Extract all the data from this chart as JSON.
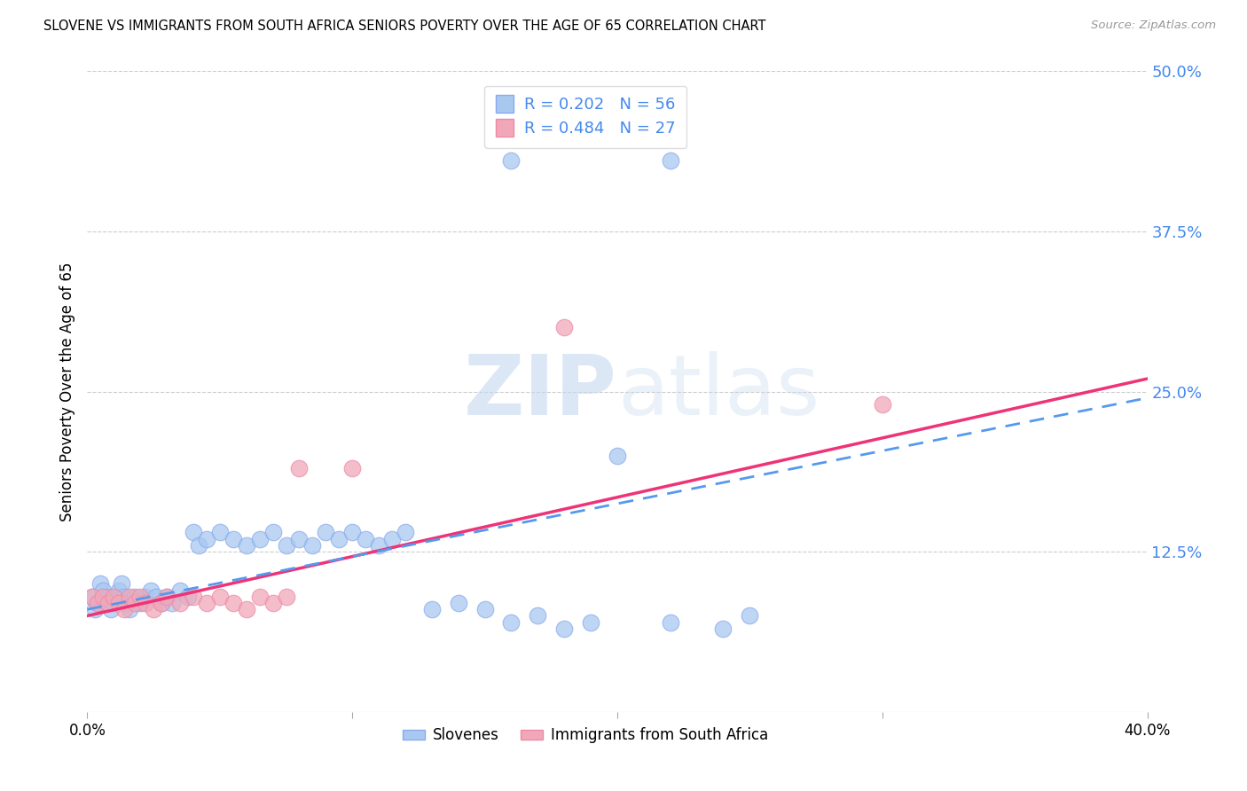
{
  "title": "SLOVENE VS IMMIGRANTS FROM SOUTH AFRICA SENIORS POVERTY OVER THE AGE OF 65 CORRELATION CHART",
  "source": "Source: ZipAtlas.com",
  "ylabel": "Seniors Poverty Over the Age of 65",
  "ytick_labels": [
    "12.5%",
    "25.0%",
    "37.5%",
    "50.0%"
  ],
  "ytick_values": [
    0.125,
    0.25,
    0.375,
    0.5
  ],
  "xtick_labels": [
    "0.0%",
    "",
    "",
    "",
    "40.0%"
  ],
  "xtick_values": [
    0.0,
    0.1,
    0.2,
    0.3,
    0.4
  ],
  "xlim": [
    0.0,
    0.4
  ],
  "ylim": [
    0.0,
    0.5
  ],
  "r_slovene": 0.202,
  "n_slovene": 56,
  "r_sa": 0.484,
  "n_sa": 27,
  "color_slovene": "#a8c8f0",
  "color_sa": "#f0a8b8",
  "line_color_slovene": "#5599ee",
  "line_color_sa": "#ee3377",
  "watermark_zip": "ZIP",
  "watermark_atlas": "atlas",
  "slovene_x": [
    0.002,
    0.003,
    0.004,
    0.005,
    0.006,
    0.007,
    0.008,
    0.009,
    0.01,
    0.011,
    0.012,
    0.013,
    0.014,
    0.015,
    0.016,
    0.018,
    0.02,
    0.022,
    0.024,
    0.026,
    0.028,
    0.03,
    0.032,
    0.035,
    0.038,
    0.04,
    0.042,
    0.045,
    0.05,
    0.055,
    0.06,
    0.065,
    0.07,
    0.075,
    0.08,
    0.085,
    0.09,
    0.095,
    0.1,
    0.105,
    0.11,
    0.115,
    0.12,
    0.13,
    0.14,
    0.15,
    0.16,
    0.17,
    0.18,
    0.19,
    0.2,
    0.22,
    0.24,
    0.25,
    0.16,
    0.22
  ],
  "slovene_y": [
    0.09,
    0.08,
    0.085,
    0.1,
    0.095,
    0.085,
    0.09,
    0.08,
    0.085,
    0.09,
    0.095,
    0.1,
    0.09,
    0.085,
    0.08,
    0.09,
    0.085,
    0.09,
    0.095,
    0.09,
    0.085,
    0.09,
    0.085,
    0.095,
    0.09,
    0.14,
    0.13,
    0.135,
    0.14,
    0.135,
    0.13,
    0.135,
    0.14,
    0.13,
    0.135,
    0.13,
    0.14,
    0.135,
    0.14,
    0.135,
    0.13,
    0.135,
    0.14,
    0.08,
    0.085,
    0.08,
    0.07,
    0.075,
    0.065,
    0.07,
    0.2,
    0.07,
    0.065,
    0.075,
    0.43,
    0.43
  ],
  "sa_x": [
    0.002,
    0.004,
    0.006,
    0.008,
    0.01,
    0.012,
    0.014,
    0.016,
    0.018,
    0.02,
    0.022,
    0.025,
    0.028,
    0.03,
    0.035,
    0.04,
    0.045,
    0.05,
    0.055,
    0.06,
    0.065,
    0.07,
    0.075,
    0.08,
    0.1,
    0.3,
    0.18
  ],
  "sa_y": [
    0.09,
    0.085,
    0.09,
    0.085,
    0.09,
    0.085,
    0.08,
    0.09,
    0.085,
    0.09,
    0.085,
    0.08,
    0.085,
    0.09,
    0.085,
    0.09,
    0.085,
    0.09,
    0.085,
    0.08,
    0.09,
    0.085,
    0.09,
    0.19,
    0.19,
    0.24,
    0.3
  ]
}
